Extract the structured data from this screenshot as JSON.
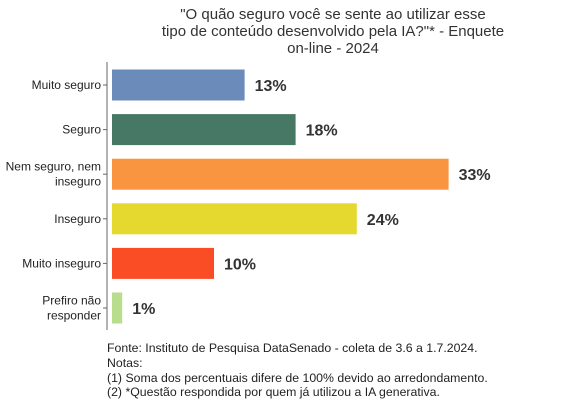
{
  "chart_data": {
    "type": "bar",
    "orientation": "horizontal",
    "title": "\"O quão seguro você se sente ao utilizar esse tipo de conteúdo desenvolvido pela IA?\"* - Enquete on-line - 2024",
    "title_lines": [
      "\"O quão seguro você se sente ao utilizar esse",
      "tipo de conteúdo desenvolvido pela IA?\"* - Enquete",
      "on-line - 2024"
    ],
    "categories": [
      "Muito seguro",
      "Seguro",
      "Nem seguro, nem inseguro",
      "Inseguro",
      "Muito inseguro",
      "Prefiro não responder"
    ],
    "category_lines": [
      [
        "Muito seguro"
      ],
      [
        "Seguro"
      ],
      [
        "Nem seguro, nem",
        "inseguro"
      ],
      [
        "Inseguro"
      ],
      [
        "Muito inseguro"
      ],
      [
        "Prefiro não",
        "responder"
      ]
    ],
    "values": [
      13,
      18,
      33,
      24,
      10,
      1
    ],
    "value_labels": [
      "13%",
      "18%",
      "33%",
      "24%",
      "10%",
      "1%"
    ],
    "colors": [
      "#6b8cba",
      "#477866",
      "#f99540",
      "#e5d930",
      "#fb4d25",
      "#b8dd8c"
    ],
    "xlim": [
      0,
      40
    ],
    "grid": false,
    "legend": "none"
  },
  "notes": [
    "Fonte: Instituto de Pesquisa DataSenado - coleta de 3.6 a 1.7.2024.",
    "Notas:",
    "(1) Soma dos percentuais difere de 100% devido ao arredondamento.",
    "(2) *Questão respondida por quem já utilizou a IA generativa."
  ]
}
